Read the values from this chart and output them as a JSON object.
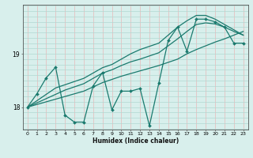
{
  "title": "",
  "xlabel": "Humidex (Indice chaleur)",
  "ylabel": "",
  "bg_color": "#d8efec",
  "line_color": "#1a7a6e",
  "grid_color_v": "#e8b8b8",
  "grid_color_h": "#b0d8d2",
  "x_ticks": [
    0,
    1,
    2,
    3,
    4,
    5,
    6,
    7,
    8,
    9,
    10,
    11,
    12,
    13,
    14,
    15,
    16,
    17,
    18,
    19,
    20,
    21,
    22,
    23
  ],
  "y_ticks": [
    18,
    19
  ],
  "xlim": [
    -0.5,
    23.5
  ],
  "ylim": [
    17.58,
    19.92
  ],
  "data_line": [
    18.0,
    18.25,
    18.55,
    18.75,
    17.85,
    17.72,
    17.72,
    18.4,
    18.65,
    17.95,
    18.3,
    18.3,
    18.35,
    17.65,
    18.45,
    19.25,
    19.5,
    19.05,
    19.65,
    19.65,
    19.6,
    19.5,
    19.2,
    19.2
  ],
  "trend_line1": [
    18.0,
    18.05,
    18.1,
    18.15,
    18.2,
    18.25,
    18.3,
    18.38,
    18.46,
    18.52,
    18.58,
    18.63,
    18.68,
    18.73,
    18.78,
    18.84,
    18.9,
    19.0,
    19.08,
    19.15,
    19.22,
    19.28,
    19.35,
    19.42
  ],
  "trend_line2": [
    18.0,
    18.12,
    18.24,
    18.36,
    18.42,
    18.48,
    18.54,
    18.64,
    18.74,
    18.8,
    18.9,
    19.0,
    19.08,
    19.14,
    19.2,
    19.35,
    19.5,
    19.62,
    19.72,
    19.72,
    19.65,
    19.55,
    19.45,
    19.35
  ],
  "trend_line3": [
    18.0,
    18.08,
    18.16,
    18.24,
    18.32,
    18.38,
    18.44,
    18.54,
    18.64,
    18.7,
    18.78,
    18.85,
    18.9,
    18.96,
    19.02,
    19.15,
    19.28,
    19.42,
    19.55,
    19.58,
    19.56,
    19.5,
    19.42,
    19.35
  ]
}
